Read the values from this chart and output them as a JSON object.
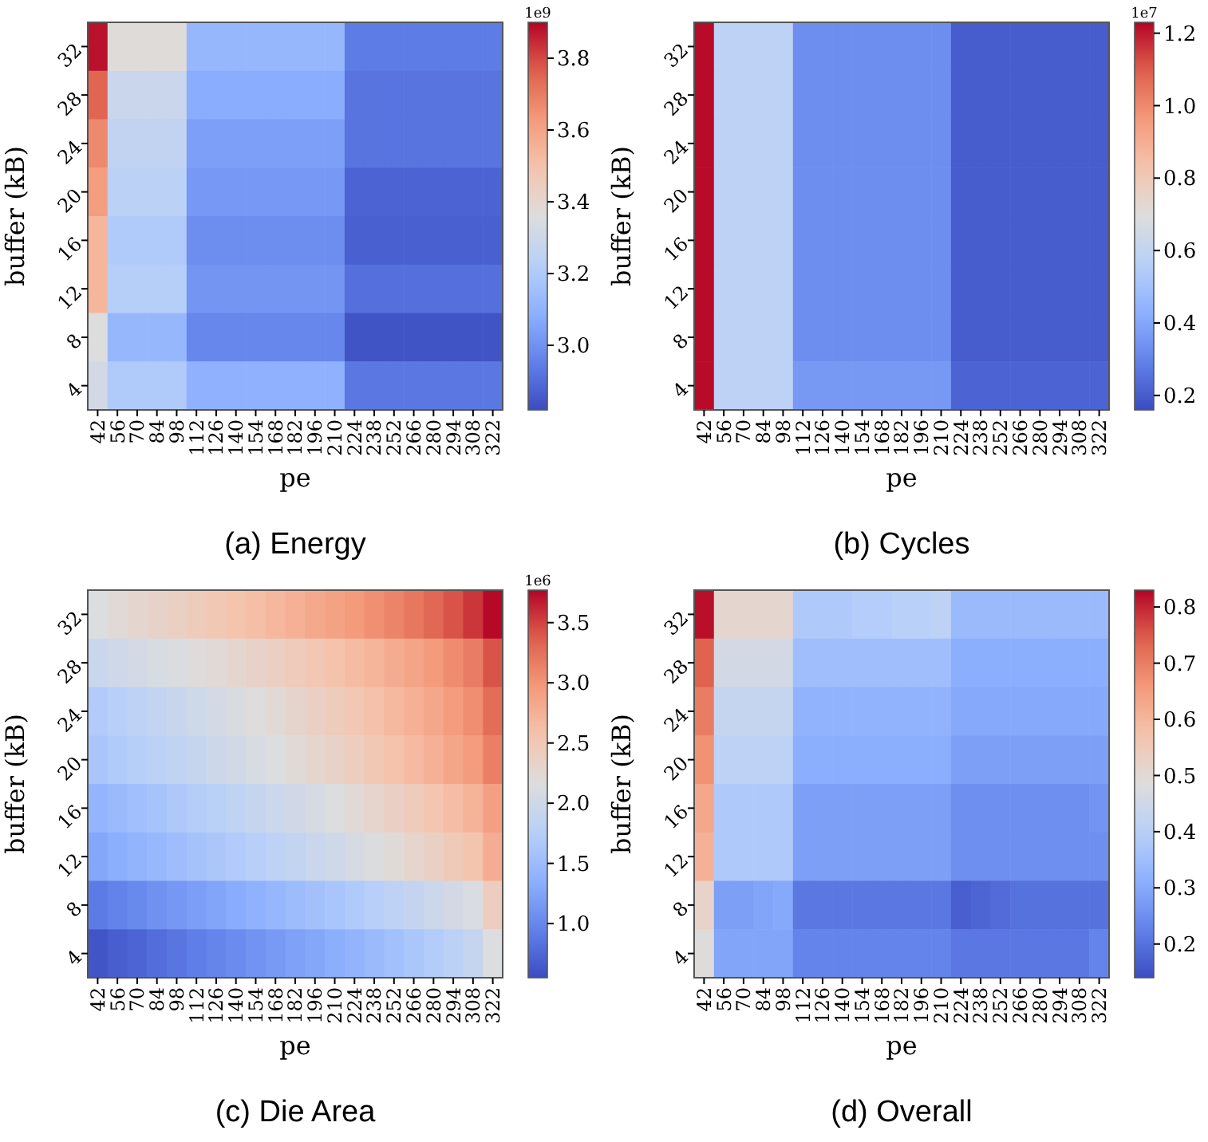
{
  "chart_data": [
    {
      "type": "heatmap",
      "title": "(a) Energy",
      "xlabel": "pe",
      "ylabel": "buffer (kB)",
      "clabel": "1e9",
      "categories": [
        "42",
        "56",
        "70",
        "84",
        "98",
        "112",
        "126",
        "140",
        "154",
        "168",
        "182",
        "196",
        "210",
        "224",
        "238",
        "252",
        "266",
        "280",
        "294",
        "308",
        "322"
      ],
      "y_categories": [
        "32",
        "28",
        "24",
        "20",
        "16",
        "12",
        "8",
        "4"
      ],
      "cells": [
        [
          3.88,
          3.37,
          3.37,
          3.37,
          3.37,
          3.12,
          3.12,
          3.12,
          3.12,
          3.12,
          3.12,
          3.12,
          3.12,
          2.94,
          2.94,
          2.94,
          2.94,
          2.94,
          2.94,
          2.94,
          2.94
        ],
        [
          3.75,
          3.29,
          3.29,
          3.29,
          3.29,
          3.08,
          3.08,
          3.08,
          3.08,
          3.08,
          3.08,
          3.08,
          3.08,
          2.92,
          2.92,
          2.92,
          2.92,
          2.92,
          2.92,
          2.92,
          2.92
        ],
        [
          3.67,
          3.26,
          3.26,
          3.26,
          3.26,
          3.04,
          3.04,
          3.04,
          3.04,
          3.04,
          3.04,
          3.04,
          3.04,
          2.92,
          2.92,
          2.92,
          2.92,
          2.92,
          2.92,
          2.92,
          2.92
        ],
        [
          3.62,
          3.24,
          3.24,
          3.24,
          3.24,
          3.02,
          3.02,
          3.02,
          3.02,
          3.02,
          3.02,
          3.02,
          3.02,
          2.88,
          2.88,
          2.88,
          2.88,
          2.88,
          2.88,
          2.88,
          2.88
        ],
        [
          3.54,
          3.2,
          3.2,
          3.2,
          3.2,
          2.99,
          2.99,
          2.99,
          2.99,
          2.99,
          2.99,
          2.99,
          2.99,
          2.87,
          2.87,
          2.87,
          2.87,
          2.87,
          2.87,
          2.87,
          2.87
        ],
        [
          3.54,
          3.22,
          3.22,
          3.22,
          3.22,
          3.01,
          3.01,
          3.01,
          3.01,
          3.01,
          3.01,
          3.01,
          3.01,
          2.91,
          2.91,
          2.91,
          2.91,
          2.91,
          2.91,
          2.91,
          2.91
        ],
        [
          3.36,
          3.12,
          3.12,
          3.12,
          3.12,
          2.97,
          2.97,
          2.97,
          2.97,
          2.97,
          2.97,
          2.97,
          2.97,
          2.84,
          2.84,
          2.84,
          2.84,
          2.84,
          2.84,
          2.84,
          2.84
        ],
        [
          3.32,
          3.2,
          3.2,
          3.2,
          3.2,
          3.1,
          3.1,
          3.1,
          3.1,
          3.1,
          3.1,
          3.1,
          3.1,
          2.93,
          2.93,
          2.93,
          2.93,
          2.93,
          2.93,
          2.93,
          2.93
        ]
      ],
      "clim": [
        2.82,
        3.9
      ],
      "cticks": [
        {
          "value": 3,
          "label": "3.0"
        },
        3.2,
        3.4,
        3.6,
        3.8
      ]
    },
    {
      "type": "heatmap",
      "title": "(b) Cycles",
      "xlabel": "pe",
      "ylabel": "buffer (kB)",
      "clabel": "1e7",
      "categories": [
        "42",
        "56",
        "70",
        "84",
        "98",
        "112",
        "126",
        "140",
        "154",
        "168",
        "182",
        "196",
        "210",
        "224",
        "238",
        "252",
        "266",
        "280",
        "294",
        "308",
        "322"
      ],
      "y_categories": [
        "32",
        "28",
        "24",
        "20",
        "16",
        "12",
        "8",
        "4"
      ],
      "cells": [
        [
          1.22,
          0.58,
          0.58,
          0.58,
          0.58,
          0.33,
          0.33,
          0.33,
          0.33,
          0.33,
          0.33,
          0.33,
          0.33,
          0.2,
          0.2,
          0.2,
          0.2,
          0.2,
          0.2,
          0.2,
          0.2
        ],
        [
          1.22,
          0.58,
          0.58,
          0.58,
          0.58,
          0.33,
          0.33,
          0.33,
          0.33,
          0.33,
          0.33,
          0.33,
          0.33,
          0.2,
          0.2,
          0.2,
          0.2,
          0.2,
          0.2,
          0.2,
          0.2
        ],
        [
          1.22,
          0.58,
          0.58,
          0.58,
          0.58,
          0.33,
          0.33,
          0.33,
          0.33,
          0.33,
          0.33,
          0.33,
          0.33,
          0.2,
          0.2,
          0.2,
          0.2,
          0.2,
          0.2,
          0.2,
          0.2
        ],
        [
          1.22,
          0.58,
          0.58,
          0.58,
          0.58,
          0.33,
          0.33,
          0.33,
          0.33,
          0.33,
          0.33,
          0.33,
          0.33,
          0.2,
          0.2,
          0.2,
          0.2,
          0.2,
          0.2,
          0.2,
          0.2
        ],
        [
          1.22,
          0.58,
          0.58,
          0.58,
          0.58,
          0.33,
          0.33,
          0.33,
          0.33,
          0.33,
          0.33,
          0.33,
          0.33,
          0.2,
          0.2,
          0.2,
          0.2,
          0.2,
          0.2,
          0.2,
          0.2
        ],
        [
          1.22,
          0.58,
          0.58,
          0.58,
          0.58,
          0.33,
          0.33,
          0.33,
          0.33,
          0.33,
          0.33,
          0.33,
          0.33,
          0.2,
          0.2,
          0.2,
          0.2,
          0.2,
          0.2,
          0.2,
          0.2
        ],
        [
          1.22,
          0.58,
          0.58,
          0.58,
          0.58,
          0.33,
          0.33,
          0.33,
          0.33,
          0.33,
          0.33,
          0.33,
          0.33,
          0.2,
          0.2,
          0.2,
          0.2,
          0.2,
          0.2,
          0.2,
          0.2
        ],
        [
          1.22,
          0.58,
          0.58,
          0.58,
          0.58,
          0.36,
          0.36,
          0.36,
          0.36,
          0.36,
          0.36,
          0.36,
          0.36,
          0.22,
          0.22,
          0.22,
          0.22,
          0.22,
          0.22,
          0.22,
          0.22
        ]
      ],
      "clim": [
        0.16,
        1.23
      ],
      "cticks": [
        0.2,
        0.4,
        0.6,
        0.8,
        {
          "value": 1,
          "label": "1.0"
        },
        1.2
      ]
    },
    {
      "type": "heatmap",
      "title": "(c) Die Area",
      "xlabel": "pe",
      "ylabel": "buffer (kB)",
      "clabel": "1e6",
      "categories": [
        "42",
        "56",
        "70",
        "84",
        "98",
        "112",
        "126",
        "140",
        "154",
        "168",
        "182",
        "196",
        "210",
        "224",
        "238",
        "252",
        "266",
        "280",
        "294",
        "308",
        "322"
      ],
      "y_categories": [
        "32",
        "28",
        "24",
        "20",
        "16",
        "12",
        "8",
        "4"
      ],
      "cells": [
        [
          2.15,
          2.22,
          2.28,
          2.33,
          2.38,
          2.44,
          2.5,
          2.56,
          2.62,
          2.68,
          2.75,
          2.82,
          2.89,
          2.96,
          3.04,
          3.12,
          3.21,
          3.31,
          3.42,
          3.55,
          3.75
        ],
        [
          1.95,
          2.0,
          2.05,
          2.09,
          2.13,
          2.18,
          2.23,
          2.28,
          2.33,
          2.39,
          2.45,
          2.51,
          2.57,
          2.64,
          2.71,
          2.79,
          2.87,
          2.96,
          3.06,
          3.17,
          3.42
        ],
        [
          1.7,
          1.76,
          1.82,
          1.87,
          1.93,
          1.99,
          2.05,
          2.11,
          2.17,
          2.23,
          2.3,
          2.37,
          2.44,
          2.51,
          2.59,
          2.67,
          2.75,
          2.84,
          2.94,
          3.05,
          3.28
        ],
        [
          1.62,
          1.68,
          1.74,
          1.8,
          1.85,
          1.91,
          1.97,
          2.03,
          2.09,
          2.15,
          2.21,
          2.28,
          2.35,
          2.42,
          2.5,
          2.58,
          2.66,
          2.75,
          2.85,
          2.95,
          3.15
        ],
        [
          1.42,
          1.48,
          1.54,
          1.6,
          1.66,
          1.72,
          1.78,
          1.84,
          1.9,
          1.96,
          2.02,
          2.08,
          2.15,
          2.22,
          2.29,
          2.37,
          2.45,
          2.54,
          2.63,
          2.73,
          2.92
        ],
        [
          1.28,
          1.34,
          1.4,
          1.46,
          1.52,
          1.58,
          1.64,
          1.7,
          1.76,
          1.82,
          1.88,
          1.94,
          2.0,
          2.07,
          2.14,
          2.21,
          2.29,
          2.37,
          2.46,
          2.55,
          2.78
        ],
        [
          0.9,
          0.96,
          1.02,
          1.08,
          1.14,
          1.2,
          1.26,
          1.32,
          1.38,
          1.44,
          1.5,
          1.56,
          1.62,
          1.68,
          1.75,
          1.82,
          1.89,
          1.96,
          2.04,
          2.12,
          2.42
        ],
        [
          0.62,
          0.68,
          0.74,
          0.8,
          0.86,
          0.92,
          0.98,
          1.04,
          1.1,
          1.16,
          1.22,
          1.28,
          1.34,
          1.41,
          1.48,
          1.55,
          1.63,
          1.71,
          1.8,
          1.9,
          2.15
        ]
      ],
      "clim": [
        0.55,
        3.77
      ],
      "cticks": [
        {
          "value": 1,
          "label": "1.0"
        },
        1.5,
        {
          "value": 2,
          "label": "2.0"
        },
        2.5,
        {
          "value": 3,
          "label": "3.0"
        },
        3.5
      ]
    },
    {
      "type": "heatmap",
      "title": "(d) Overall",
      "xlabel": "pe",
      "ylabel": "buffer (kB)",
      "categories": [
        "42",
        "56",
        "70",
        "84",
        "98",
        "112",
        "126",
        "140",
        "154",
        "168",
        "182",
        "196",
        "210",
        "224",
        "238",
        "252",
        "266",
        "280",
        "294",
        "308",
        "322"
      ],
      "y_categories": [
        "32",
        "28",
        "24",
        "20",
        "16",
        "12",
        "8",
        "4"
      ],
      "cells": [
        [
          0.82,
          0.51,
          0.51,
          0.51,
          0.51,
          0.38,
          0.38,
          0.38,
          0.39,
          0.39,
          0.4,
          0.4,
          0.41,
          0.34,
          0.34,
          0.34,
          0.34,
          0.34,
          0.34,
          0.34,
          0.34
        ],
        [
          0.74,
          0.46,
          0.46,
          0.46,
          0.46,
          0.35,
          0.35,
          0.35,
          0.35,
          0.35,
          0.35,
          0.35,
          0.35,
          0.31,
          0.31,
          0.31,
          0.31,
          0.31,
          0.31,
          0.31,
          0.31
        ],
        [
          0.7,
          0.43,
          0.43,
          0.43,
          0.43,
          0.32,
          0.32,
          0.32,
          0.32,
          0.32,
          0.32,
          0.32,
          0.32,
          0.3,
          0.3,
          0.3,
          0.3,
          0.3,
          0.3,
          0.3,
          0.3
        ],
        [
          0.67,
          0.41,
          0.41,
          0.41,
          0.41,
          0.31,
          0.31,
          0.31,
          0.31,
          0.31,
          0.31,
          0.31,
          0.31,
          0.28,
          0.28,
          0.28,
          0.28,
          0.28,
          0.28,
          0.28,
          0.28
        ],
        [
          0.63,
          0.38,
          0.38,
          0.38,
          0.38,
          0.28,
          0.28,
          0.28,
          0.28,
          0.28,
          0.28,
          0.28,
          0.28,
          0.25,
          0.25,
          0.25,
          0.25,
          0.25,
          0.25,
          0.25,
          0.26
        ],
        [
          0.61,
          0.38,
          0.38,
          0.38,
          0.38,
          0.28,
          0.28,
          0.28,
          0.28,
          0.28,
          0.28,
          0.28,
          0.28,
          0.25,
          0.25,
          0.25,
          0.25,
          0.25,
          0.25,
          0.25,
          0.25
        ],
        [
          0.52,
          0.28,
          0.28,
          0.29,
          0.3,
          0.21,
          0.21,
          0.21,
          0.21,
          0.21,
          0.21,
          0.21,
          0.21,
          0.17,
          0.18,
          0.19,
          0.2,
          0.2,
          0.2,
          0.2,
          0.2
        ],
        [
          0.49,
          0.29,
          0.29,
          0.29,
          0.29,
          0.23,
          0.23,
          0.23,
          0.23,
          0.23,
          0.23,
          0.23,
          0.23,
          0.21,
          0.21,
          0.21,
          0.21,
          0.21,
          0.21,
          0.21,
          0.23
        ]
      ],
      "clim": [
        0.14,
        0.83
      ],
      "cticks": [
        0.2,
        0.3,
        0.4,
        0.5,
        0.6,
        0.7,
        0.8
      ]
    }
  ]
}
